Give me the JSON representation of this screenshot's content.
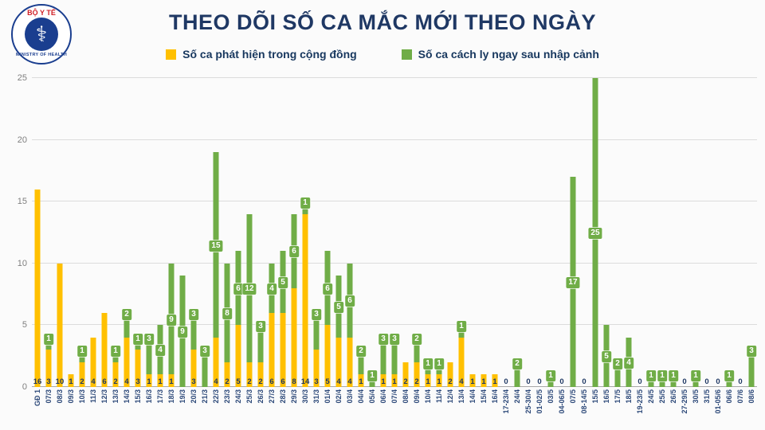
{
  "header": {
    "title": "THEO DÕI SỐ CA MẮC MỚI THEO NGÀY",
    "logo": {
      "top_text": "BỘ Y TẾ",
      "bottom_text": "MINISTRY OF HEALTH"
    }
  },
  "legend": [
    {
      "label": "Số ca phát hiện trong cộng đồng",
      "color": "#FFC000"
    },
    {
      "label": "Số ca cách ly ngay sau nhập cảnh",
      "color": "#70AD47"
    }
  ],
  "colors": {
    "community": "#FFC000",
    "imported": "#70AD47",
    "title_text": "#1F3864",
    "axis_text": "#7f7f7f",
    "gridline": "#dcdcdc"
  },
  "chart_data": {
    "type": "bar",
    "stacked": true,
    "title": "THEO DÕI SỐ CA MẮC MỚI THEO NGÀY",
    "xlabel": "",
    "ylabel": "",
    "ylim": [
      0,
      25
    ],
    "yticks": [
      0,
      5,
      10,
      15,
      20,
      25
    ],
    "grid": true,
    "legend_position": "top",
    "categories": [
      "GĐ 1",
      "07/3",
      "08/3",
      "09/3",
      "10/3",
      "11/3",
      "12/3",
      "13/3",
      "14/3",
      "15/3",
      "16/3",
      "17/3",
      "18/3",
      "19/3",
      "20/3",
      "21/3",
      "22/3",
      "23/3",
      "24/3",
      "25/3",
      "26/3",
      "27/3",
      "28/3",
      "29/3",
      "30/3",
      "31/3",
      "01/4",
      "02/4",
      "03/4",
      "04/4",
      "05/4",
      "06/4",
      "07/4",
      "08/4",
      "09/4",
      "10/4",
      "11/4",
      "12/4",
      "13/4",
      "14/4",
      "15/4",
      "16/4",
      "17-23/4",
      "24/4",
      "25-30/4",
      "01-02/5",
      "03/5",
      "04-06/5",
      "07/5",
      "08-14/5",
      "15/5",
      "16/5",
      "17/5",
      "18/5",
      "19-23/5",
      "24/5",
      "25/5",
      "26/5",
      "27-29/5",
      "30/5",
      "31/5",
      "01-05/6",
      "06/6",
      "07/6",
      "08/6"
    ],
    "series": [
      {
        "name": "Số ca phát hiện trong cộng đồng",
        "color": "#FFC000",
        "values": [
          16,
          3,
          10,
          1,
          2,
          4,
          6,
          2,
          4,
          3,
          1,
          1,
          1,
          0,
          3,
          0,
          4,
          2,
          5,
          2,
          2,
          6,
          6,
          8,
          14,
          3,
          5,
          4,
          4,
          1,
          0,
          1,
          1,
          2,
          2,
          1,
          1,
          2,
          4,
          1,
          1,
          1,
          0,
          0,
          0,
          0,
          0,
          0,
          0,
          0,
          0,
          0,
          0,
          0,
          0,
          0,
          0,
          0,
          0,
          0,
          0,
          0,
          0,
          0,
          0
        ]
      },
      {
        "name": "Số ca cách ly ngay sau nhập cảnh",
        "color": "#70AD47",
        "values": [
          0,
          1,
          0,
          0,
          1,
          0,
          0,
          1,
          2,
          1,
          3,
          4,
          9,
          9,
          3,
          3,
          15,
          8,
          6,
          12,
          3,
          4,
          5,
          6,
          1,
          3,
          6,
          5,
          6,
          2,
          1,
          3,
          3,
          0,
          2,
          1,
          1,
          0,
          1,
          0,
          0,
          0,
          0,
          2,
          0,
          0,
          1,
          0,
          17,
          0,
          25,
          5,
          2,
          4,
          0,
          1,
          1,
          1,
          0,
          1,
          0,
          0,
          1,
          0,
          3
        ]
      }
    ],
    "base_labels": [
      "16",
      "3",
      "10",
      "1",
      "2",
      "4",
      "6",
      "2",
      "4",
      "3",
      "1",
      "1",
      "1",
      "",
      "3",
      "",
      "4",
      "2",
      "5",
      "2",
      "2",
      "6",
      "6",
      "8",
      "14",
      "3",
      "5",
      "4",
      "4",
      "1",
      "",
      "1",
      "1",
      "2",
      "2",
      "1",
      "1",
      "2",
      "4",
      "1",
      "1",
      "1",
      "0",
      "",
      "0",
      "0",
      "",
      "0",
      "",
      "0",
      "",
      "",
      "",
      "",
      "0",
      "",
      "",
      "",
      "0",
      "",
      "0",
      "0",
      "",
      "0",
      ""
    ]
  }
}
